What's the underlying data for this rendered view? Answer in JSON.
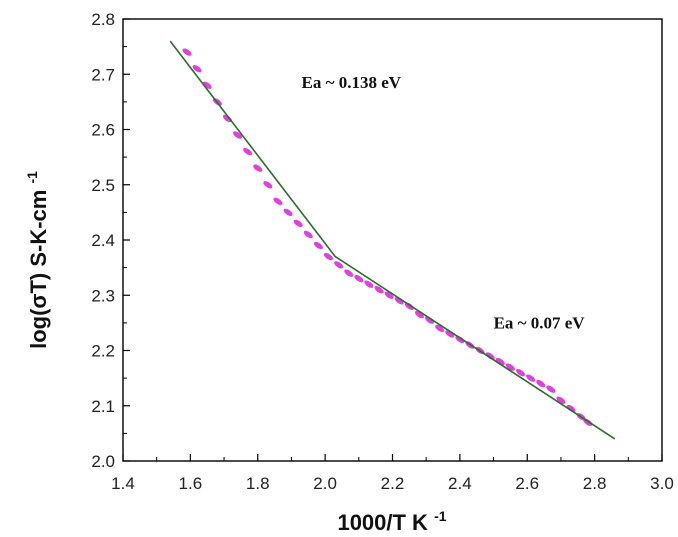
{
  "chart_data": {
    "type": "scatter",
    "title": "",
    "xlabel": "1000/T K",
    "xlabel_sup": "-1",
    "ylabel": "log(σT) S-K-cm",
    "ylabel_sup": "-1",
    "xlim": [
      1.4,
      3.0
    ],
    "ylim": [
      2.0,
      2.8
    ],
    "x_ticks": [
      1.4,
      1.6,
      1.8,
      2.0,
      2.2,
      2.4,
      2.6,
      2.8,
      3.0
    ],
    "x_tick_labels": [
      "1.4",
      "1.6",
      "1.8",
      "2.0",
      "2.2",
      "2.4",
      "2.6",
      "2.8",
      "3.0"
    ],
    "y_ticks": [
      2.0,
      2.1,
      2.2,
      2.3,
      2.4,
      2.5,
      2.6,
      2.7,
      2.8
    ],
    "y_tick_labels": [
      "2.0",
      "2.1",
      "2.2",
      "2.3",
      "2.4",
      "2.5",
      "2.6",
      "2.7",
      "2.8"
    ],
    "grid": false,
    "colors": {
      "points": "#e040e0",
      "fit": "#2a6e2a",
      "axes": "#000000"
    },
    "series": [
      {
        "kind": "points",
        "x": [
          1.59,
          1.62,
          1.65,
          1.68,
          1.71,
          1.74,
          1.77,
          1.8,
          1.83,
          1.86,
          1.89,
          1.92,
          1.95,
          1.98,
          2.01,
          2.04,
          2.07,
          2.1,
          2.13,
          2.16,
          2.19,
          2.22,
          2.25,
          2.28,
          2.31,
          2.34,
          2.37,
          2.4,
          2.43,
          2.46,
          2.49,
          2.52,
          2.55,
          2.58,
          2.61,
          2.64,
          2.67,
          2.7,
          2.73,
          2.76,
          2.78
        ],
        "y": [
          2.74,
          2.71,
          2.68,
          2.65,
          2.62,
          2.59,
          2.56,
          2.53,
          2.5,
          2.47,
          2.45,
          2.43,
          2.41,
          2.39,
          2.37,
          2.355,
          2.34,
          2.33,
          2.32,
          2.31,
          2.3,
          2.29,
          2.28,
          2.265,
          2.255,
          2.24,
          2.23,
          2.22,
          2.21,
          2.2,
          2.19,
          2.18,
          2.17,
          2.16,
          2.15,
          2.14,
          2.13,
          2.11,
          2.095,
          2.08,
          2.07
        ]
      },
      {
        "kind": "fit",
        "x": [
          1.54,
          2.03,
          2.86
        ],
        "y": [
          2.76,
          2.37,
          2.04
        ]
      }
    ],
    "annotations": [
      {
        "text": "Ea ~ 0.138 eV",
        "x": 1.93,
        "y": 2.675
      },
      {
        "text": "Ea ~ 0.07 eV",
        "x": 2.5,
        "y": 2.24
      }
    ]
  }
}
